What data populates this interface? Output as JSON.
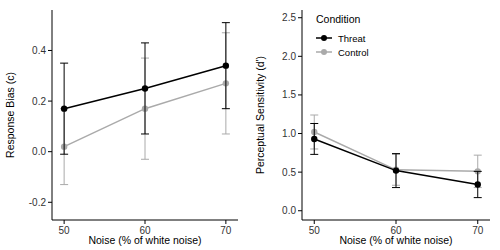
{
  "chart_data": [
    {
      "type": "line",
      "x_label": "Noise (% of white noise)",
      "y_label": "Response Bias (c)",
      "x": [
        50,
        60,
        70
      ],
      "xlim": [
        48.5,
        71.5
      ],
      "xticks": [
        50,
        60,
        70
      ],
      "ylim": [
        -0.27,
        0.56
      ],
      "yticks": [
        -0.2,
        {
          "value": 0,
          "label": "0.0"
        },
        0.2,
        0.4
      ],
      "grid": false,
      "series": [
        {
          "name": "Threat",
          "color": "#000000",
          "marker": "circle",
          "values": [
            0.17,
            0.25,
            0.34
          ],
          "errors": [
            0.18,
            0.18,
            0.17
          ]
        },
        {
          "name": "Control",
          "color": "#aaaaaa",
          "marker": "circle",
          "values": [
            0.02,
            0.17,
            0.27
          ],
          "errors": [
            0.15,
            0.2,
            0.2
          ]
        }
      ]
    },
    {
      "type": "line",
      "x_label": "Noise (% of white noise)",
      "y_label": "Perceptual Sensitivity (d')",
      "legend": "top-left",
      "legend_title": "Condition",
      "x": [
        50,
        60,
        70
      ],
      "xlim": [
        48.5,
        71.5
      ],
      "xticks": [
        50,
        60,
        70
      ],
      "ylim": [
        -0.12,
        2.6
      ],
      "yticks": [
        {
          "value": 0,
          "label": "0.0"
        },
        0.5,
        {
          "value": 1,
          "label": "1.0"
        },
        1.5,
        {
          "value": 2,
          "label": "2.0"
        },
        2.5
      ],
      "grid": false,
      "series": [
        {
          "name": "Threat",
          "color": "#000000",
          "marker": "circle",
          "values": [
            0.93,
            0.52,
            0.34
          ],
          "errors": [
            0.2,
            0.22,
            0.17
          ]
        },
        {
          "name": "Control",
          "color": "#aaaaaa",
          "marker": "circle",
          "values": [
            1.02,
            0.53,
            0.51
          ],
          "errors": [
            0.22,
            0.2,
            0.21
          ]
        }
      ]
    }
  ]
}
